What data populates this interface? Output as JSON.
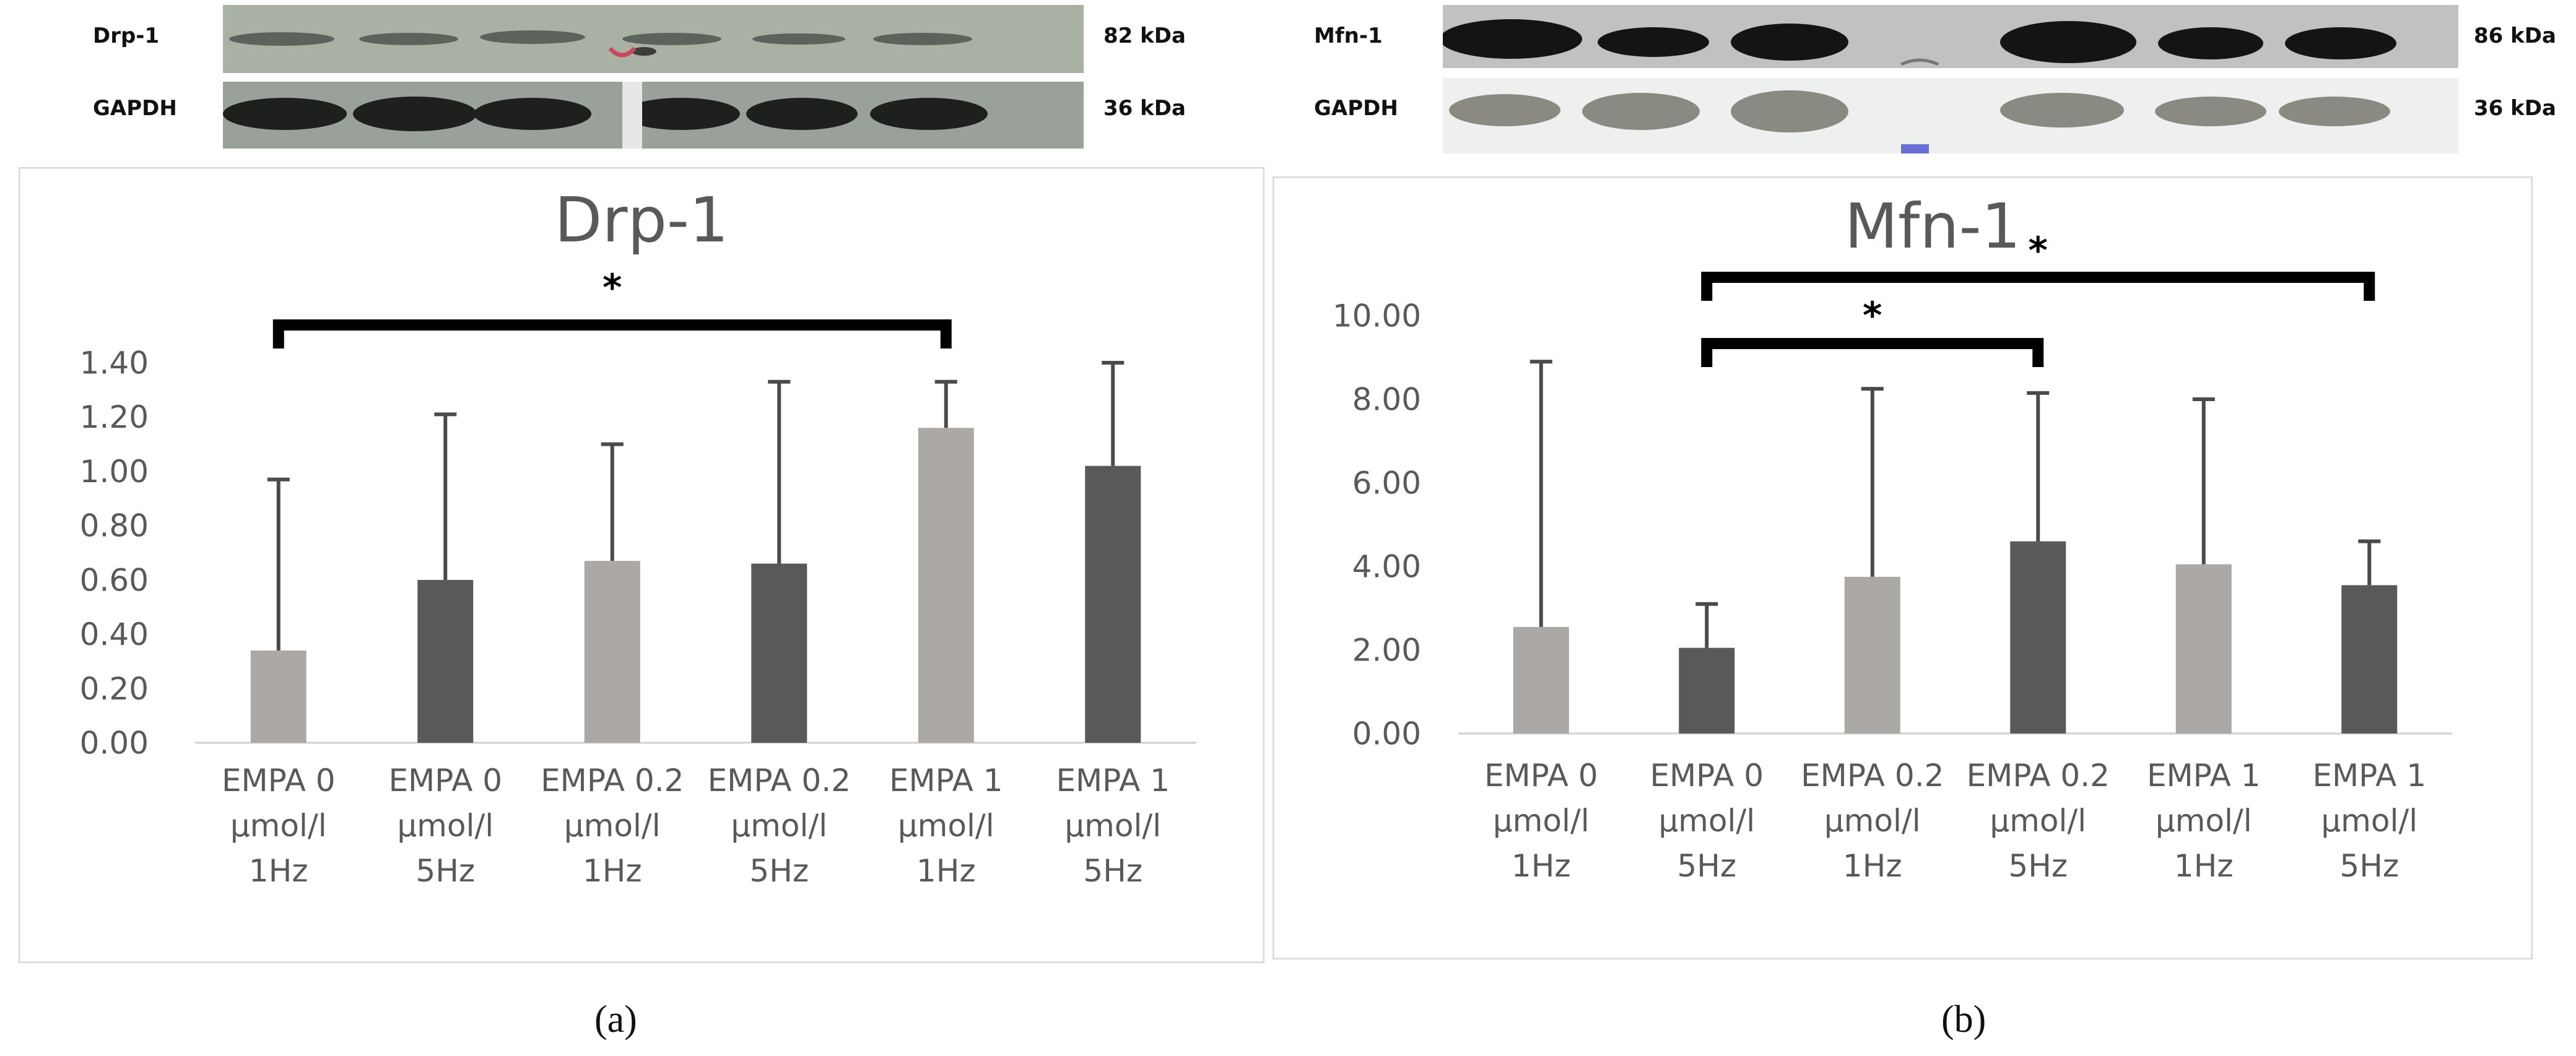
{
  "panel_a": {
    "letter": "(a)",
    "blot": {
      "rows": [
        {
          "label": "Drp-1",
          "size": "82 kDa"
        },
        {
          "label": "GAPDH",
          "size": "36 kDa"
        }
      ]
    }
  },
  "panel_b": {
    "letter": "(b)",
    "blot": {
      "rows": [
        {
          "label": "Mfn-1",
          "size": "86 kDa"
        },
        {
          "label": "GAPDH",
          "size": "36 kDa"
        }
      ]
    }
  },
  "colors": {
    "light_bar": "#ABA8A6",
    "dark_bar": "#595959",
    "error_bar": "#4a4a4a",
    "axis_text": "#595959",
    "title_text": "#595959",
    "bracket": "#000000",
    "panel_border": "#d9d9d9"
  },
  "chart_data": [
    {
      "type": "bar",
      "title": "Drp-1",
      "categories": [
        [
          "EMPA 0",
          "µmol/l",
          "1Hz"
        ],
        [
          "EMPA 0",
          "µmol/l",
          "5Hz"
        ],
        [
          "EMPA 0.2",
          "µmol/l",
          "1Hz"
        ],
        [
          "EMPA 0.2",
          "µmol/l",
          "5Hz"
        ],
        [
          "EMPA 1",
          "µmol/l",
          "1Hz"
        ],
        [
          "EMPA 1",
          "µmol/l",
          "5Hz"
        ]
      ],
      "values": [
        0.34,
        0.6,
        0.67,
        0.66,
        1.16,
        1.02
      ],
      "error_upper": [
        0.97,
        1.21,
        1.1,
        1.33,
        1.33,
        1.4
      ],
      "bar_colors": [
        "light",
        "dark",
        "light",
        "dark",
        "light",
        "dark"
      ],
      "yticks": [
        "0.00",
        "0.20",
        "0.40",
        "0.60",
        "0.80",
        "1.00",
        "1.20",
        "1.40"
      ],
      "ylim": [
        0,
        1.4
      ],
      "grid": false,
      "significance": [
        {
          "from": 0,
          "to": 4,
          "label": "*"
        }
      ]
    },
    {
      "type": "bar",
      "title": "Mfn-1",
      "categories": [
        [
          "EMPA 0",
          "µmol/l",
          "1Hz"
        ],
        [
          "EMPA 0",
          "µmol/l",
          "5Hz"
        ],
        [
          "EMPA 0.2",
          "µmol/l",
          "1Hz"
        ],
        [
          "EMPA 0.2",
          "µmol/l",
          "5Hz"
        ],
        [
          "EMPA 1",
          "µmol/l",
          "1Hz"
        ],
        [
          "EMPA 1",
          "µmol/l",
          "5Hz"
        ]
      ],
      "values": [
        2.55,
        2.05,
        3.75,
        4.6,
        4.05,
        3.55
      ],
      "error_upper": [
        8.9,
        3.1,
        8.25,
        8.15,
        8.0,
        4.6
      ],
      "bar_colors": [
        "light",
        "dark",
        "light",
        "dark",
        "light",
        "dark"
      ],
      "yticks": [
        "0.00",
        "2.00",
        "4.00",
        "6.00",
        "8.00",
        "10.00"
      ],
      "ylim": [
        0,
        10
      ],
      "grid": false,
      "significance": [
        {
          "from": 1,
          "to": 5,
          "label": "*"
        },
        {
          "from": 1,
          "to": 3,
          "label": "*"
        }
      ]
    }
  ]
}
